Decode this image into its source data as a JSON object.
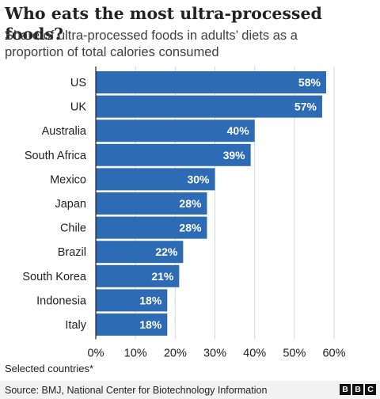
{
  "title": "Who eats the most ultra-processed foods?",
  "subtitle": "Share of ultra-processed foods in adults’ diets as a proportion of total calories consumed",
  "note": "Selected countries*",
  "source": "Source: BMJ, National Center for Biotechnology Information",
  "logo": [
    "B",
    "B",
    "C"
  ],
  "colors": {
    "bar": "#2d6bb4",
    "label": "#ffffff",
    "grid": "#d6d6d6",
    "axis": "#222222"
  },
  "chart_data": {
    "type": "bar",
    "orientation": "horizontal",
    "categories": [
      "US",
      "UK",
      "Australia",
      "South Africa",
      "Mexico",
      "Japan",
      "Chile",
      "Brazil",
      "South Korea",
      "Indonesia",
      "Italy"
    ],
    "values": [
      58,
      57,
      40,
      39,
      30,
      28,
      28,
      22,
      21,
      18,
      18
    ],
    "value_labels": [
      "58%",
      "57%",
      "40%",
      "39%",
      "30%",
      "28%",
      "28%",
      "22%",
      "21%",
      "18%",
      "18%"
    ],
    "xlim": [
      0,
      60
    ],
    "xticks": [
      0,
      10,
      20,
      30,
      40,
      50,
      60
    ],
    "xtick_labels": [
      "0%",
      "10%",
      "20%",
      "30%",
      "40%",
      "50%",
      "60%"
    ],
    "grid": true,
    "xlabel": "",
    "ylabel": ""
  }
}
